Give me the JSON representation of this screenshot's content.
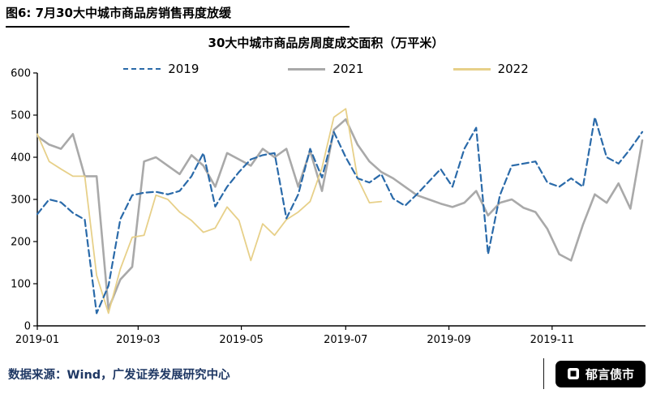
{
  "figure": {
    "header_title": "图6: 7月30大中城市商品房销售再度放缓",
    "source_note": "数据来源：Wind，广发证券发展研究中心",
    "brand_name": "郁言债市"
  },
  "chart_data": {
    "type": "line",
    "title": "30大中城市商品房周度成交面积（万平米）",
    "xlabel": "",
    "ylabel": "",
    "ylim": [
      0,
      600
    ],
    "y_ticks": [
      0,
      100,
      200,
      300,
      400,
      500,
      600
    ],
    "grid": false,
    "legend_position": "top-center",
    "x_unit": "week index within year (weekly data)",
    "x_total_weeks": 52,
    "x_ticks": [
      {
        "label": "2019-01",
        "week": 0
      },
      {
        "label": "2019-03",
        "week": 8.5
      },
      {
        "label": "2019-05",
        "week": 17.2
      },
      {
        "label": "2019-07",
        "week": 26
      },
      {
        "label": "2019-09",
        "week": 34.7
      },
      {
        "label": "2019-11",
        "week": 43.4
      }
    ],
    "series": [
      {
        "name": "2019",
        "style": "dashed",
        "color": "#2a6aa9",
        "values": [
          265,
          300,
          293,
          268,
          252,
          30,
          95,
          253,
          310,
          316,
          318,
          312,
          320,
          355,
          410,
          283,
          330,
          365,
          395,
          405,
          410,
          255,
          312,
          420,
          352,
          460,
          400,
          350,
          340,
          360,
          302,
          285,
          312,
          342,
          372,
          330,
          420,
          470,
          170,
          310,
          380,
          385,
          390,
          340,
          330,
          350,
          330,
          495,
          400,
          385,
          420,
          460
        ]
      },
      {
        "name": "2021",
        "style": "solid",
        "color": "#a9a9a9",
        "values": [
          450,
          430,
          420,
          455,
          355,
          355,
          40,
          110,
          140,
          390,
          400,
          380,
          360,
          405,
          380,
          330,
          410,
          395,
          380,
          420,
          400,
          420,
          330,
          415,
          320,
          465,
          490,
          430,
          390,
          365,
          350,
          330,
          310,
          300,
          290,
          282,
          292,
          320,
          262,
          292,
          300,
          280,
          270,
          230,
          170,
          155,
          240,
          312,
          292,
          338,
          278,
          440
        ]
      },
      {
        "name": "2022",
        "style": "solid",
        "color": "#e7d089",
        "values": [
          455,
          390,
          372,
          355,
          355,
          120,
          30,
          135,
          210,
          215,
          310,
          300,
          270,
          250,
          222,
          232,
          282,
          250,
          155,
          242,
          215,
          252,
          270,
          295,
          375,
          495,
          515,
          350,
          292,
          295
        ]
      }
    ]
  }
}
